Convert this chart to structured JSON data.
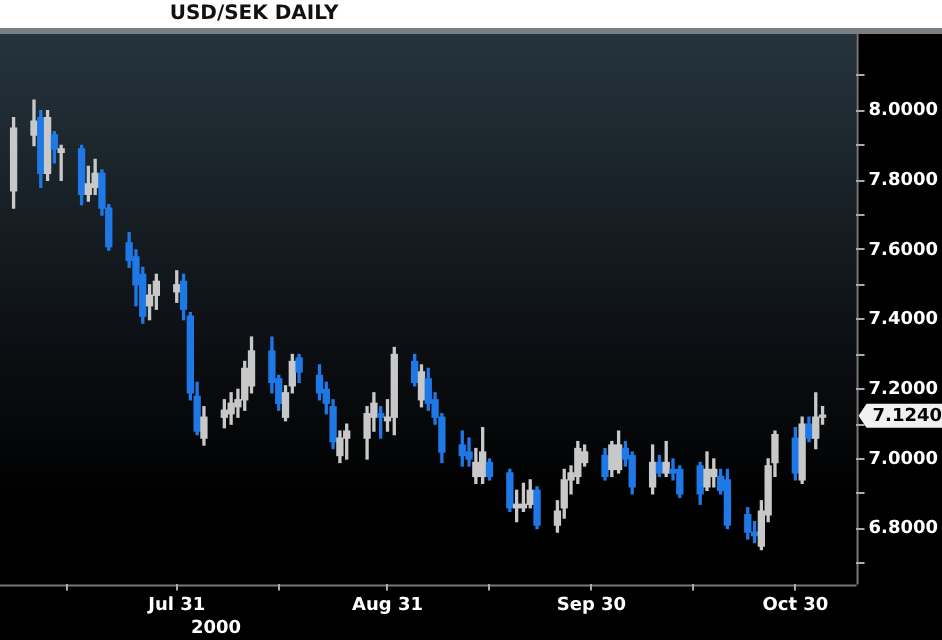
{
  "chart_data": {
    "type": "candlestick",
    "title": "USD/SEK DAILY",
    "x": [
      "2000-07-07",
      "2000-07-10",
      "2000-07-11",
      "2000-07-12",
      "2000-07-13",
      "2000-07-14",
      "2000-07-17",
      "2000-07-18",
      "2000-07-19",
      "2000-07-20",
      "2000-07-21",
      "2000-07-24",
      "2000-07-25",
      "2000-07-26",
      "2000-07-27",
      "2000-07-28",
      "2000-07-31",
      "2000-08-01",
      "2000-08-02",
      "2000-08-03",
      "2000-08-04",
      "2000-08-07",
      "2000-08-08",
      "2000-08-09",
      "2000-08-10",
      "2000-08-11",
      "2000-08-14",
      "2000-08-15",
      "2000-08-16",
      "2000-08-17",
      "2000-08-18",
      "2000-08-21",
      "2000-08-22",
      "2000-08-23",
      "2000-08-24",
      "2000-08-25",
      "2000-08-28",
      "2000-08-29",
      "2000-08-30",
      "2000-08-31",
      "2000-09-01",
      "2000-09-04",
      "2000-09-05",
      "2000-09-06",
      "2000-09-07",
      "2000-09-08",
      "2000-09-11",
      "2000-09-12",
      "2000-09-13",
      "2000-09-14",
      "2000-09-15",
      "2000-09-18",
      "2000-09-19",
      "2000-09-20",
      "2000-09-21",
      "2000-09-22",
      "2000-09-25",
      "2000-09-26",
      "2000-09-27",
      "2000-09-28",
      "2000-09-29",
      "2000-10-02",
      "2000-10-03",
      "2000-10-04",
      "2000-10-05",
      "2000-10-06",
      "2000-10-09",
      "2000-10-10",
      "2000-10-11",
      "2000-10-12",
      "2000-10-13",
      "2000-10-16",
      "2000-10-17",
      "2000-10-18",
      "2000-10-19",
      "2000-10-20",
      "2000-10-23",
      "2000-10-24",
      "2000-10-25",
      "2000-10-26",
      "2000-10-27",
      "2000-10-30",
      "2000-10-31",
      "2000-11-01",
      "2000-11-02",
      "2000-11-03"
    ],
    "ohlc": [
      [
        7.77,
        7.98,
        7.72,
        7.95
      ],
      [
        7.93,
        8.03,
        7.9,
        7.97
      ],
      [
        7.98,
        8.0,
        7.78,
        7.82
      ],
      [
        7.82,
        8.0,
        7.8,
        7.98
      ],
      [
        7.93,
        7.94,
        7.85,
        7.89
      ],
      [
        7.88,
        7.9,
        7.8,
        7.89
      ],
      [
        7.89,
        7.9,
        7.73,
        7.76
      ],
      [
        7.76,
        7.84,
        7.74,
        7.79
      ],
      [
        7.78,
        7.86,
        7.76,
        7.82
      ],
      [
        7.82,
        7.83,
        7.7,
        7.72
      ],
      [
        7.72,
        7.73,
        7.6,
        7.61
      ],
      [
        7.62,
        7.65,
        7.55,
        7.57
      ],
      [
        7.58,
        7.6,
        7.44,
        7.5
      ],
      [
        7.53,
        7.55,
        7.39,
        7.41
      ],
      [
        7.44,
        7.5,
        7.4,
        7.47
      ],
      [
        7.47,
        7.53,
        7.43,
        7.51
      ],
      [
        7.48,
        7.54,
        7.45,
        7.5
      ],
      [
        7.51,
        7.53,
        7.4,
        7.43
      ],
      [
        7.41,
        7.42,
        7.17,
        7.19
      ],
      [
        7.18,
        7.22,
        7.07,
        7.08
      ],
      [
        7.06,
        7.15,
        7.04,
        7.12
      ],
      [
        7.12,
        7.17,
        7.09,
        7.14
      ],
      [
        7.13,
        7.19,
        7.1,
        7.16
      ],
      [
        7.15,
        7.2,
        7.12,
        7.17
      ],
      [
        7.17,
        7.28,
        7.14,
        7.26
      ],
      [
        7.21,
        7.35,
        7.19,
        7.31
      ],
      [
        7.31,
        7.35,
        7.19,
        7.22
      ],
      [
        7.23,
        7.24,
        7.14,
        7.16
      ],
      [
        7.12,
        7.21,
        7.11,
        7.19
      ],
      [
        7.21,
        7.3,
        7.19,
        7.28
      ],
      [
        7.29,
        7.3,
        7.22,
        7.25
      ],
      [
        7.24,
        7.27,
        7.17,
        7.19
      ],
      [
        7.2,
        7.22,
        7.13,
        7.16
      ],
      [
        7.15,
        7.17,
        7.03,
        7.05
      ],
      [
        7.01,
        7.08,
        6.99,
        7.06
      ],
      [
        7.06,
        7.1,
        7.0,
        7.08
      ],
      [
        7.06,
        7.15,
        7.0,
        7.13
      ],
      [
        7.12,
        7.19,
        7.08,
        7.16
      ],
      [
        7.13,
        7.15,
        7.06,
        7.12
      ],
      [
        7.11,
        7.17,
        7.08,
        7.12
      ],
      [
        7.12,
        7.32,
        7.07,
        7.3
      ],
      [
        7.28,
        7.3,
        7.21,
        7.22
      ],
      [
        7.17,
        7.27,
        7.15,
        7.25
      ],
      [
        7.23,
        7.26,
        7.14,
        7.16
      ],
      [
        7.17,
        7.19,
        7.1,
        7.12
      ],
      [
        7.12,
        7.13,
        6.99,
        7.02
      ],
      [
        7.04,
        7.08,
        6.98,
        7.01
      ],
      [
        7.02,
        7.06,
        6.98,
        7.0
      ],
      [
        6.95,
        7.03,
        6.93,
        6.99
      ],
      [
        6.95,
        7.09,
        6.93,
        7.02
      ],
      [
        6.99,
        7.0,
        6.94,
        6.95
      ],
      [
        6.96,
        6.97,
        6.85,
        6.86
      ],
      [
        6.86,
        6.91,
        6.82,
        6.87
      ],
      [
        6.86,
        6.93,
        6.85,
        6.87
      ],
      [
        6.87,
        6.94,
        6.86,
        6.91
      ],
      [
        6.91,
        6.92,
        6.8,
        6.81
      ],
      [
        6.81,
        6.88,
        6.79,
        6.85
      ],
      [
        6.86,
        6.97,
        6.83,
        6.94
      ],
      [
        6.94,
        6.98,
        6.9,
        6.96
      ],
      [
        6.95,
        7.05,
        6.93,
        7.03
      ],
      [
        6.99,
        7.04,
        6.98,
        7.02
      ],
      [
        7.01,
        7.03,
        6.94,
        6.95
      ],
      [
        6.97,
        7.05,
        6.95,
        7.04
      ],
      [
        6.97,
        7.08,
        6.96,
        7.04
      ],
      [
        7.03,
        7.05,
        6.98,
        7.0
      ],
      [
        7.01,
        7.02,
        6.9,
        6.92
      ],
      [
        6.92,
        7.04,
        6.9,
        6.99
      ],
      [
        6.99,
        7.01,
        6.95,
        6.96
      ],
      [
        6.96,
        7.05,
        6.95,
        6.99
      ],
      [
        6.97,
        7.0,
        6.94,
        6.96
      ],
      [
        6.97,
        6.98,
        6.89,
        6.9
      ],
      [
        6.98,
        6.99,
        6.87,
        6.9
      ],
      [
        6.92,
        7.02,
        6.91,
        6.97
      ],
      [
        6.95,
        7.0,
        6.92,
        6.97
      ],
      [
        6.95,
        6.97,
        6.9,
        6.91
      ],
      [
        6.94,
        6.97,
        6.8,
        6.81
      ],
      [
        6.84,
        6.86,
        6.77,
        6.79
      ],
      [
        6.79,
        6.82,
        6.76,
        6.78
      ],
      [
        6.75,
        6.88,
        6.74,
        6.85
      ],
      [
        6.84,
        7.0,
        6.82,
        6.98
      ],
      [
        6.99,
        7.08,
        6.95,
        7.07
      ],
      [
        7.06,
        7.09,
        6.94,
        6.96
      ],
      [
        6.94,
        7.12,
        6.93,
        7.1
      ],
      [
        7.1,
        7.12,
        7.05,
        7.06
      ],
      [
        7.06,
        7.19,
        7.03,
        7.12
      ],
      [
        7.12,
        7.15,
        7.1,
        7.124
      ]
    ],
    "colors": [
      "#c8c8c8",
      "#c8c8c8",
      "#1e78e6",
      "#c8c8c8",
      "#1e78e6",
      "#c8c8c8",
      "#1e78e6",
      "#c8c8c8",
      "#c8c8c8",
      "#1e78e6",
      "#1e78e6",
      "#1e78e6",
      "#1e78e6",
      "#1e78e6",
      "#c8c8c8",
      "#c8c8c8",
      "#c8c8c8",
      "#1e78e6",
      "#1e78e6",
      "#1e78e6",
      "#c8c8c8",
      "#c8c8c8",
      "#c8c8c8",
      "#c8c8c8",
      "#c8c8c8",
      "#c8c8c8",
      "#1e78e6",
      "#1e78e6",
      "#c8c8c8",
      "#c8c8c8",
      "#1e78e6",
      "#1e78e6",
      "#1e78e6",
      "#1e78e6",
      "#c8c8c8",
      "#c8c8c8",
      "#c8c8c8",
      "#c8c8c8",
      "#1e78e6",
      "#c8c8c8",
      "#c8c8c8",
      "#1e78e6",
      "#c8c8c8",
      "#1e78e6",
      "#1e78e6",
      "#1e78e6",
      "#1e78e6",
      "#1e78e6",
      "#c8c8c8",
      "#c8c8c8",
      "#1e78e6",
      "#1e78e6",
      "#c8c8c8",
      "#c8c8c8",
      "#c8c8c8",
      "#1e78e6",
      "#c8c8c8",
      "#c8c8c8",
      "#c8c8c8",
      "#c8c8c8",
      "#c8c8c8",
      "#1e78e6",
      "#c8c8c8",
      "#c8c8c8",
      "#1e78e6",
      "#1e78e6",
      "#c8c8c8",
      "#1e78e6",
      "#c8c8c8",
      "#1e78e6",
      "#1e78e6",
      "#1e78e6",
      "#c8c8c8",
      "#c8c8c8",
      "#1e78e6",
      "#1e78e6",
      "#1e78e6",
      "#1e78e6",
      "#c8c8c8",
      "#c8c8c8",
      "#c8c8c8",
      "#1e78e6",
      "#c8c8c8",
      "#1e78e6",
      "#c8c8c8",
      "#c8c8c8"
    ],
    "xlim": [
      "2000-07-05",
      "2000-11-08"
    ],
    "xticks": [
      {
        "value": "2000-07-15",
        "label": null
      },
      {
        "value": "2000-07-31",
        "label": "Jul 31"
      },
      {
        "value": "2000-08-15",
        "label": null
      },
      {
        "value": "2000-08-31",
        "label": "Aug 31"
      },
      {
        "value": "2000-09-15",
        "label": null
      },
      {
        "value": "2000-09-30",
        "label": "Sep 30"
      },
      {
        "value": "2000-10-15",
        "label": null
      },
      {
        "value": "2000-10-30",
        "label": "Oct 30"
      }
    ],
    "ylim": [
      6.64,
      8.22
    ],
    "yticks": [
      {
        "value": 6.7,
        "label": null
      },
      {
        "value": 6.8,
        "label": "6.8000"
      },
      {
        "value": 6.9,
        "label": null
      },
      {
        "value": 7.0,
        "label": "7.0000"
      },
      {
        "value": 7.1,
        "label": null
      },
      {
        "value": 7.2,
        "label": "7.2000"
      },
      {
        "value": 7.3,
        "label": null
      },
      {
        "value": 7.4,
        "label": "7.4000"
      },
      {
        "value": 7.5,
        "label": null
      },
      {
        "value": 7.6,
        "label": "7.6000"
      },
      {
        "value": 7.7,
        "label": null
      },
      {
        "value": 7.8,
        "label": "7.8000"
      },
      {
        "value": 7.9,
        "label": null
      },
      {
        "value": 8.0,
        "label": "8.0000"
      },
      {
        "value": 8.1,
        "label": null
      }
    ],
    "annotations": [
      "7.1240",
      "2000"
    ],
    "grid": false,
    "legend": false
  }
}
